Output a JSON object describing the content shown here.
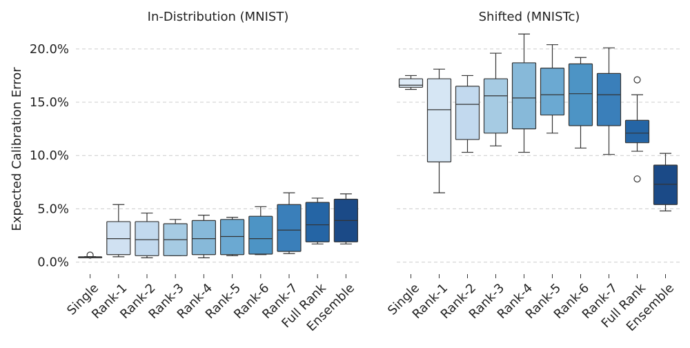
{
  "chart_data": [
    {
      "type": "box",
      "title": "In-Distribution (MNIST)",
      "xlabel": "",
      "ylabel": "Expected Calibration Error",
      "ylim": [
        -0.01,
        0.22
      ],
      "yticks": [
        0.0,
        0.05,
        0.1,
        0.15,
        0.2
      ],
      "yticklabels": [
        "0.0%",
        "5.0%",
        "10.0%",
        "15.0%",
        "20.0%"
      ],
      "grid": "y-dashed",
      "categories": [
        "Single",
        "Rank-1",
        "Rank-2",
        "Rank-3",
        "Rank-4",
        "Rank-5",
        "Rank-6",
        "Rank-7",
        "Full Rank",
        "Ensemble"
      ],
      "colors": [
        "#e3eef9",
        "#d0e1f2",
        "#c2d9ee",
        "#a6cbe3",
        "#87b9d9",
        "#6ba9d2",
        "#4d94c5",
        "#3a7fba",
        "#2565a5",
        "#1b4a87"
      ],
      "boxes": [
        {
          "whislo": 0.004,
          "q1": 0.0045,
          "med": 0.0048,
          "q3": 0.005,
          "whishi": 0.0052,
          "fliers": [
            0.0065
          ]
        },
        {
          "whislo": 0.005,
          "q1": 0.007,
          "med": 0.022,
          "q3": 0.038,
          "whishi": 0.054,
          "fliers": []
        },
        {
          "whislo": 0.004,
          "q1": 0.006,
          "med": 0.021,
          "q3": 0.038,
          "whishi": 0.046,
          "fliers": []
        },
        {
          "whislo": 0.006,
          "q1": 0.006,
          "med": 0.021,
          "q3": 0.036,
          "whishi": 0.04,
          "fliers": []
        },
        {
          "whislo": 0.004,
          "q1": 0.007,
          "med": 0.022,
          "q3": 0.039,
          "whishi": 0.044,
          "fliers": []
        },
        {
          "whislo": 0.006,
          "q1": 0.007,
          "med": 0.024,
          "q3": 0.04,
          "whishi": 0.042,
          "fliers": []
        },
        {
          "whislo": 0.007,
          "q1": 0.0075,
          "med": 0.022,
          "q3": 0.043,
          "whishi": 0.052,
          "fliers": []
        },
        {
          "whislo": 0.008,
          "q1": 0.01,
          "med": 0.03,
          "q3": 0.054,
          "whishi": 0.065,
          "fliers": []
        },
        {
          "whislo": 0.017,
          "q1": 0.019,
          "med": 0.035,
          "q3": 0.056,
          "whishi": 0.06,
          "fliers": []
        },
        {
          "whislo": 0.017,
          "q1": 0.019,
          "med": 0.039,
          "q3": 0.059,
          "whishi": 0.064,
          "fliers": []
        }
      ]
    },
    {
      "type": "box",
      "title": "Shifted (MNISTc)",
      "xlabel": "",
      "ylabel": "",
      "ylim": [
        -0.01,
        0.22
      ],
      "yticks": [
        0.0,
        0.05,
        0.1,
        0.15,
        0.2
      ],
      "grid": "y-dashed",
      "categories": [
        "Single",
        "Rank-1",
        "Rank-2",
        "Rank-3",
        "Rank-4",
        "Rank-5",
        "Rank-6",
        "Rank-7",
        "Full Rank",
        "Ensemble"
      ],
      "colors": [
        "#deebf7",
        "#d6e6f4",
        "#c2d9ee",
        "#a6cbe3",
        "#87b9d9",
        "#6ba9d2",
        "#4d94c5",
        "#3a7fba",
        "#2565a5",
        "#1b4a87"
      ],
      "boxes": [
        {
          "whislo": 0.162,
          "q1": 0.164,
          "med": 0.166,
          "q3": 0.172,
          "whishi": 0.175,
          "fliers": []
        },
        {
          "whislo": 0.065,
          "q1": 0.094,
          "med": 0.143,
          "q3": 0.172,
          "whishi": 0.181,
          "fliers": []
        },
        {
          "whislo": 0.103,
          "q1": 0.115,
          "med": 0.148,
          "q3": 0.165,
          "whishi": 0.175,
          "fliers": []
        },
        {
          "whislo": 0.109,
          "q1": 0.121,
          "med": 0.156,
          "q3": 0.172,
          "whishi": 0.196,
          "fliers": []
        },
        {
          "whislo": 0.103,
          "q1": 0.125,
          "med": 0.154,
          "q3": 0.187,
          "whishi": 0.214,
          "fliers": []
        },
        {
          "whislo": 0.121,
          "q1": 0.138,
          "med": 0.157,
          "q3": 0.182,
          "whishi": 0.204,
          "fliers": []
        },
        {
          "whislo": 0.107,
          "q1": 0.128,
          "med": 0.158,
          "q3": 0.186,
          "whishi": 0.192,
          "fliers": []
        },
        {
          "whislo": 0.101,
          "q1": 0.128,
          "med": 0.157,
          "q3": 0.177,
          "whishi": 0.201,
          "fliers": []
        },
        {
          "whislo": 0.104,
          "q1": 0.112,
          "med": 0.121,
          "q3": 0.133,
          "whishi": 0.157,
          "fliers": [
            0.078,
            0.171
          ]
        },
        {
          "whislo": 0.048,
          "q1": 0.054,
          "med": 0.073,
          "q3": 0.091,
          "whishi": 0.102,
          "fliers": []
        }
      ]
    }
  ]
}
